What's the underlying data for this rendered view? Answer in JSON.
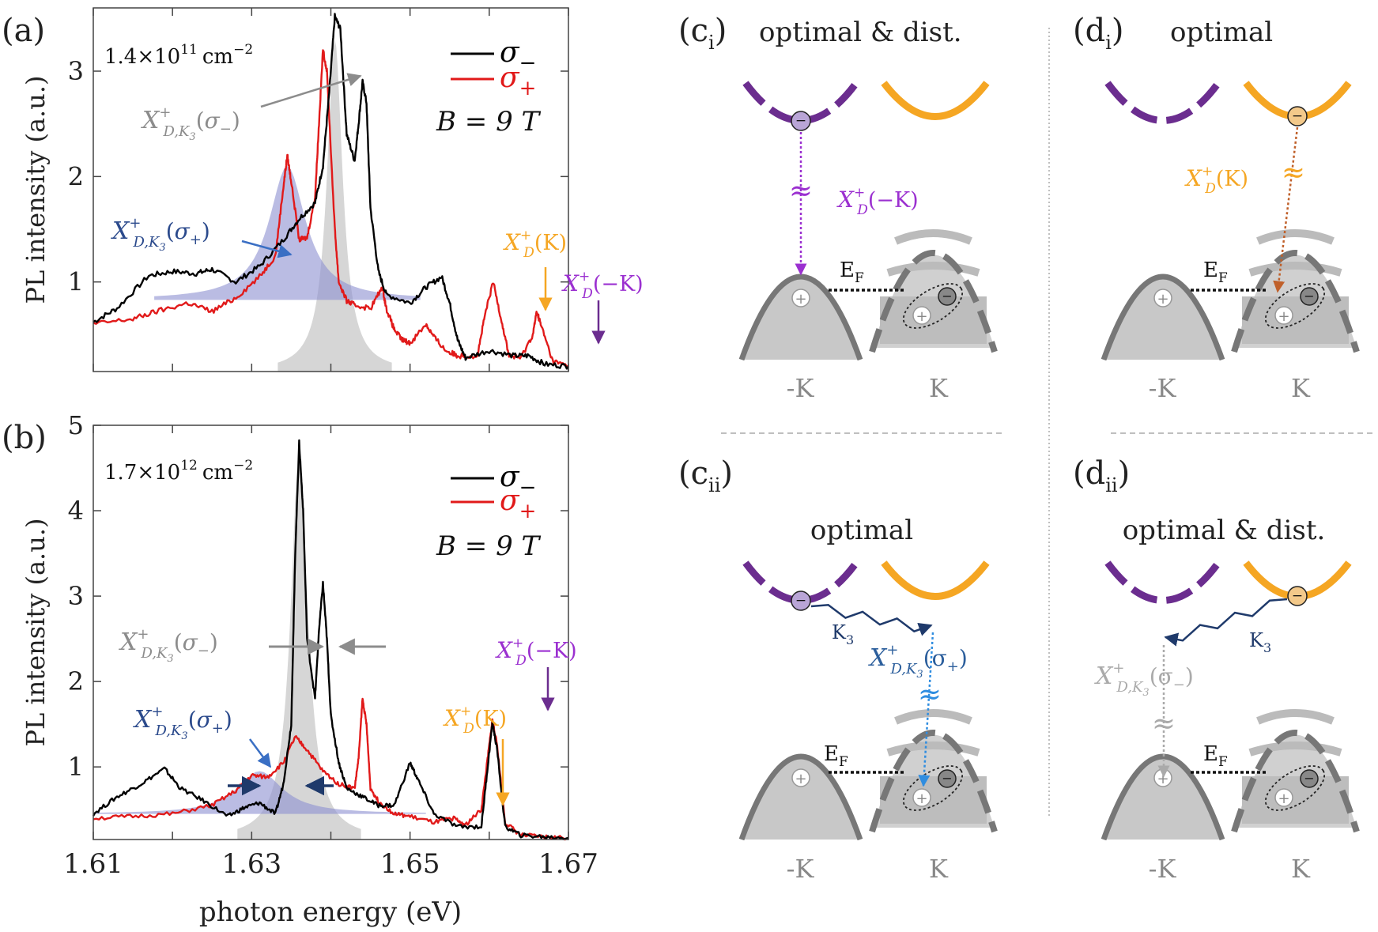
{
  "colors": {
    "sigma_minus": "#000000",
    "sigma_plus": "#e11a1a",
    "gray_label": "#8c8c8c",
    "blue_label": "#2b4a8c",
    "orange": "#f5a623",
    "purple": "#6b2d8f",
    "band_gray": "#777777",
    "fill_gray": "#c8c8c8",
    "fill_blue": "#8c8fd0"
  },
  "panels": {
    "a": {
      "label": "(a)",
      "density": "1.4×10",
      "density_exp": "11",
      "density_unit": "cm",
      "density_unit_exp": "−2",
      "legend": [
        "σ",
        "σ"
      ],
      "legend_sub": [
        "−",
        "+"
      ],
      "field": "B = 9 T",
      "ann": {
        "xd_k3_minus": "X",
        "xd_k3_plus": "X",
        "xd_k": "X",
        "xd_mk": "X"
      }
    },
    "b": {
      "label": "(b)",
      "density": "1.7×10",
      "density_exp": "12",
      "density_unit": "cm",
      "density_unit_exp": "−2",
      "legend": [
        "σ",
        "σ"
      ],
      "legend_sub": [
        "−",
        "+"
      ],
      "field": "B = 9 T"
    },
    "ci": {
      "label": "(c",
      "sub": "i",
      "title": "optimal & dist.",
      "trans": "X",
      "trans_arg": "(−K)",
      "ef": "E",
      "left": "-K",
      "right": "K"
    },
    "di": {
      "label": "(d",
      "sub": "i",
      "title": "optimal",
      "trans": "X",
      "trans_arg": "(K)",
      "ef": "E",
      "left": "-K",
      "right": "K"
    },
    "cii": {
      "label": "(c",
      "sub": "ii",
      "title": "optimal",
      "k3": "K",
      "trans": "X",
      "trans_arg": "(σ",
      "ef": "E",
      "left": "-K",
      "right": "K"
    },
    "dii": {
      "label": "(d",
      "sub": "ii",
      "title": "optimal & dist.",
      "k3": "K",
      "trans": "X",
      "trans_arg": "(σ",
      "ef": "E",
      "left": "-K",
      "right": "K"
    }
  },
  "common_text": {
    "sup_plus": "+",
    "sub_D": "D",
    "sub_DK3": "D,K",
    "sub_3": "3",
    "sub_F": "F",
    "sigma": "σ",
    "minus": "−",
    "plus_sub": "+",
    "close": ")",
    "arg_K": "(K)",
    "arg_mK": "(−K)",
    "arg_sm_close": ")"
  },
  "chart_data": [
    {
      "type": "line",
      "title": "(a)",
      "xlabel": "photon energy (eV)",
      "ylabel": "PL intensity (a.u.)",
      "xlim": [
        1.61,
        1.67
      ],
      "ylim": [
        0.15,
        3.6
      ],
      "yticks": [
        "1",
        "2",
        "3"
      ],
      "ytick_values": [
        1,
        2,
        3
      ],
      "series": [
        {
          "name": "σ−",
          "x": [
            1.61,
            1.613,
            1.617,
            1.62,
            1.623,
            1.625,
            1.628,
            1.631,
            1.634,
            1.636,
            1.638,
            1.639,
            1.6398,
            1.6405,
            1.6412,
            1.642,
            1.643,
            1.6435,
            1.644,
            1.6445,
            1.645,
            1.646,
            1.647,
            1.65,
            1.652,
            1.654,
            1.655,
            1.656,
            1.657,
            1.66,
            1.663,
            1.665,
            1.667,
            1.67
          ],
          "values": [
            0.62,
            0.75,
            1.06,
            1.1,
            1.08,
            1.12,
            1.0,
            1.15,
            1.4,
            1.6,
            1.75,
            2.1,
            2.8,
            3.52,
            3.4,
            2.4,
            2.15,
            2.5,
            2.9,
            2.7,
            1.7,
            1.1,
            0.88,
            0.8,
            0.95,
            1.05,
            0.8,
            0.45,
            0.28,
            0.35,
            0.3,
            0.3,
            0.22,
            0.2
          ]
        },
        {
          "name": "σ+",
          "x": [
            1.61,
            1.615,
            1.618,
            1.622,
            1.625,
            1.628,
            1.631,
            1.633,
            1.634,
            1.6345,
            1.635,
            1.636,
            1.637,
            1.638,
            1.6385,
            1.639,
            1.6395,
            1.6405,
            1.641,
            1.642,
            1.643,
            1.645,
            1.6465,
            1.647,
            1.648,
            1.649,
            1.65,
            1.652,
            1.653,
            1.6545,
            1.656,
            1.6585,
            1.6595,
            1.6605,
            1.6615,
            1.6625,
            1.664,
            1.6655,
            1.666,
            1.6665,
            1.668,
            1.67
          ],
          "values": [
            0.6,
            0.65,
            0.72,
            0.8,
            0.72,
            0.85,
            1.05,
            1.25,
            1.9,
            2.2,
            1.95,
            1.4,
            1.42,
            1.8,
            2.5,
            3.2,
            3.0,
            1.5,
            1.0,
            0.82,
            0.78,
            0.75,
            0.95,
            0.75,
            0.55,
            0.45,
            0.42,
            0.6,
            0.48,
            0.35,
            0.3,
            0.3,
            0.7,
            1.0,
            0.65,
            0.3,
            0.28,
            0.5,
            0.72,
            0.6,
            0.25,
            0.2
          ]
        }
      ],
      "fills": [
        {
          "name": "gray gaussian",
          "center": 1.6405,
          "peak": 3.3
        },
        {
          "name": "blue gaussian",
          "center": 1.6345,
          "peak": 2.1
        }
      ]
    },
    {
      "type": "line",
      "title": "(b)",
      "xlabel": "photon energy (eV)",
      "ylabel": "PL intensity (a.u.)",
      "xlim": [
        1.61,
        1.67
      ],
      "ylim": [
        0.15,
        5.0
      ],
      "xticks": [
        "1.61",
        "1.63",
        "1.65",
        "1.67"
      ],
      "xtick_values": [
        1.61,
        1.63,
        1.65,
        1.67
      ],
      "yticks": [
        "1",
        "2",
        "3",
        "4",
        "5"
      ],
      "ytick_values": [
        1,
        2,
        3,
        4,
        5
      ],
      "series": [
        {
          "name": "σ−",
          "x": [
            1.61,
            1.613,
            1.616,
            1.619,
            1.621,
            1.624,
            1.627,
            1.629,
            1.631,
            1.633,
            1.634,
            1.635,
            1.6355,
            1.636,
            1.6365,
            1.637,
            1.638,
            1.6385,
            1.639,
            1.6395,
            1.64,
            1.641,
            1.642,
            1.644,
            1.646,
            1.648,
            1.65,
            1.651,
            1.653,
            1.656,
            1.659,
            1.6598,
            1.6604,
            1.661,
            1.662,
            1.664,
            1.667,
            1.67
          ],
          "values": [
            0.45,
            0.65,
            0.8,
            0.98,
            0.75,
            0.6,
            0.42,
            0.52,
            0.58,
            0.45,
            0.8,
            1.5,
            3.5,
            4.8,
            4.0,
            2.5,
            1.8,
            2.6,
            3.15,
            2.5,
            1.6,
            1.05,
            0.75,
            0.65,
            0.55,
            0.55,
            1.05,
            0.85,
            0.45,
            0.3,
            0.3,
            1.0,
            1.52,
            1.2,
            0.3,
            0.2,
            0.18,
            0.17
          ]
        },
        {
          "name": "σ+",
          "x": [
            1.61,
            1.615,
            1.62,
            1.625,
            1.628,
            1.63,
            1.632,
            1.634,
            1.6355,
            1.637,
            1.639,
            1.641,
            1.643,
            1.6435,
            1.644,
            1.6445,
            1.645,
            1.646,
            1.648,
            1.65,
            1.653,
            1.6555,
            1.657,
            1.659,
            1.6598,
            1.6604,
            1.661,
            1.662,
            1.664,
            1.667,
            1.67
          ],
          "values": [
            0.4,
            0.42,
            0.45,
            0.55,
            0.72,
            0.9,
            0.88,
            1.05,
            1.35,
            1.2,
            0.95,
            0.8,
            0.75,
            1.1,
            1.8,
            1.5,
            0.75,
            0.6,
            0.45,
            0.42,
            0.35,
            0.4,
            0.32,
            0.5,
            1.1,
            1.55,
            1.25,
            0.35,
            0.2,
            0.18,
            0.17
          ]
        }
      ],
      "fills": [
        {
          "name": "gray gaussian",
          "center": 1.636,
          "peak": 4.7
        },
        {
          "name": "blue gaussian",
          "center": 1.631,
          "peak": 0.95
        }
      ]
    }
  ]
}
